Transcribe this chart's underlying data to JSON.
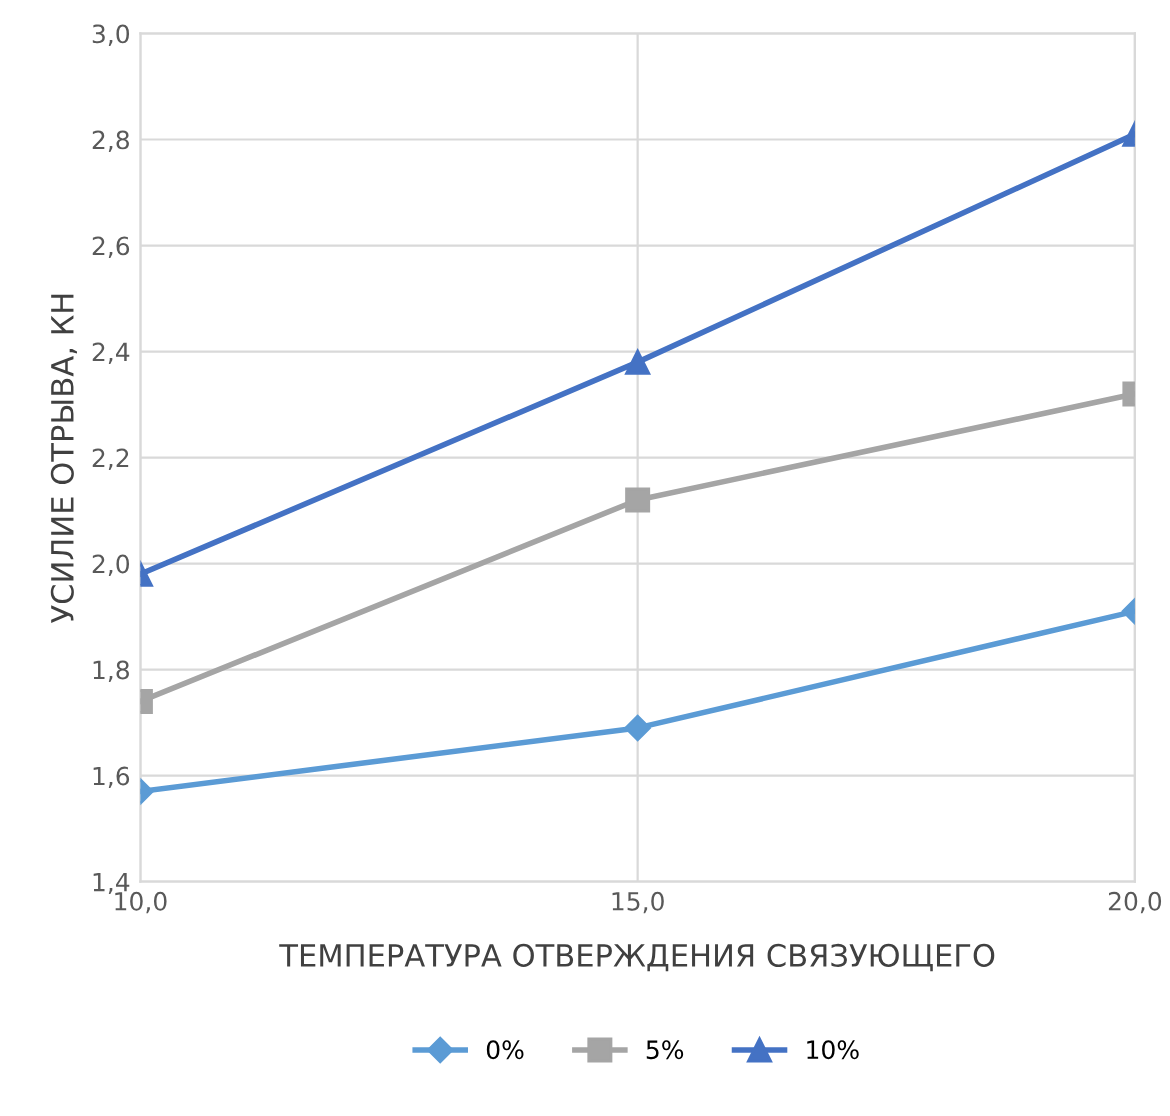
{
  "chart_data": {
    "type": "line",
    "xlabel": "ТЕМПЕРАТУРА ОТВЕРЖДЕНИЯ СВЯЗУЮЩЕГО",
    "ylabel": "УСИЛИЕ ОТРЫВА, КН",
    "x": [
      10,
      15,
      20
    ],
    "series": [
      {
        "name": "0%",
        "color": "#5b9bd5",
        "marker": "diamond",
        "values": [
          1.57,
          1.69,
          1.91
        ]
      },
      {
        "name": "5%",
        "color": "#a5a5a5",
        "marker": "square",
        "values": [
          1.74,
          2.12,
          2.32
        ]
      },
      {
        "name": "10%",
        "color": "#4472c4",
        "marker": "triangle",
        "values": [
          1.98,
          2.38,
          2.81
        ]
      }
    ],
    "xlim": [
      10,
      20
    ],
    "xticks": [
      {
        "value": 10,
        "label": "10,0"
      },
      {
        "value": 15,
        "label": "15,0"
      },
      {
        "value": 20,
        "label": "20,0"
      }
    ],
    "ylim": [
      1.4,
      3.0
    ],
    "yticks": [
      {
        "value": 1.4,
        "label": "1,4"
      },
      {
        "value": 1.6,
        "label": "1,6"
      },
      {
        "value": 1.8,
        "label": "1,8"
      },
      {
        "value": 2.0,
        "label": "2,0"
      },
      {
        "value": 2.2,
        "label": "2,2"
      },
      {
        "value": 2.4,
        "label": "2,4"
      },
      {
        "value": 2.6,
        "label": "2,6"
      },
      {
        "value": 2.8,
        "label": "2,8"
      },
      {
        "value": 3.0,
        "label": "3,0"
      }
    ],
    "grid": true,
    "legend": "bottom",
    "line_style": "solid"
  }
}
